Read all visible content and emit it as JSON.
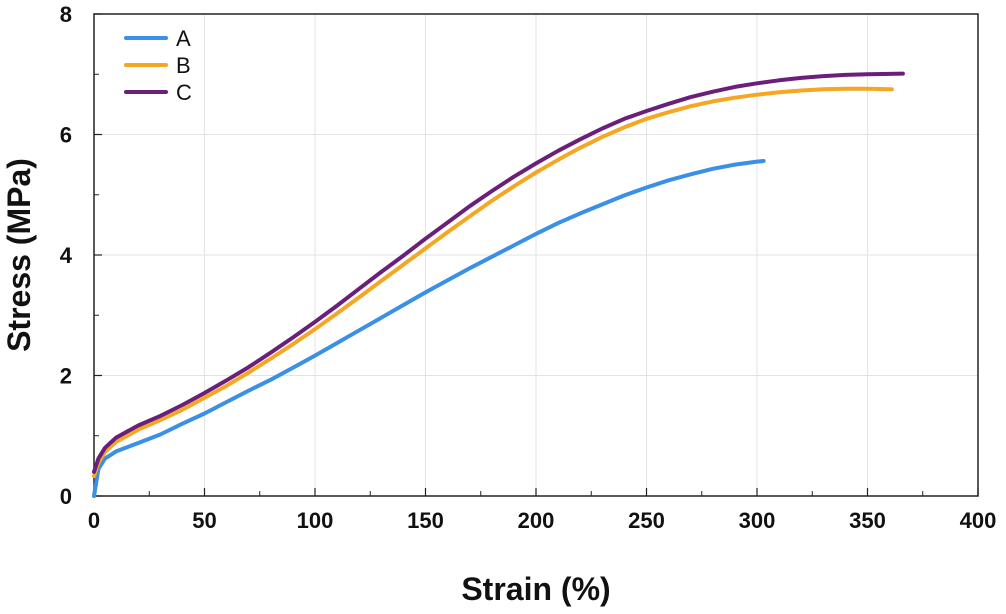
{
  "chart_data": {
    "type": "line",
    "xlabel": "Strain (%)",
    "ylabel": "Stress (MPa)",
    "xlim": [
      0,
      400
    ],
    "ylim": [
      0,
      8
    ],
    "xticks": [
      0,
      50,
      100,
      150,
      200,
      250,
      300,
      350,
      400
    ],
    "yticks": [
      0,
      2,
      4,
      6,
      8
    ],
    "grid": true,
    "legend_position": "top-left",
    "series": [
      {
        "name": "A",
        "color": "#3a8fe6",
        "points": [
          [
            0,
            0
          ],
          [
            2,
            0.45
          ],
          [
            5,
            0.62
          ],
          [
            10,
            0.74
          ],
          [
            20,
            0.88
          ],
          [
            30,
            1.02
          ],
          [
            40,
            1.2
          ],
          [
            50,
            1.37
          ],
          [
            60,
            1.56
          ],
          [
            70,
            1.75
          ],
          [
            80,
            1.93
          ],
          [
            90,
            2.13
          ],
          [
            100,
            2.33
          ],
          [
            110,
            2.54
          ],
          [
            120,
            2.75
          ],
          [
            130,
            2.96
          ],
          [
            140,
            3.17
          ],
          [
            150,
            3.38
          ],
          [
            160,
            3.58
          ],
          [
            170,
            3.78
          ],
          [
            180,
            3.97
          ],
          [
            190,
            4.16
          ],
          [
            200,
            4.35
          ],
          [
            210,
            4.53
          ],
          [
            220,
            4.69
          ],
          [
            230,
            4.84
          ],
          [
            240,
            4.99
          ],
          [
            250,
            5.12
          ],
          [
            260,
            5.24
          ],
          [
            270,
            5.34
          ],
          [
            280,
            5.43
          ],
          [
            290,
            5.5
          ],
          [
            300,
            5.55
          ],
          [
            303,
            5.56
          ]
        ]
      },
      {
        "name": "B",
        "color": "#f5a623",
        "points": [
          [
            0,
            0.33
          ],
          [
            2,
            0.55
          ],
          [
            5,
            0.73
          ],
          [
            10,
            0.9
          ],
          [
            20,
            1.1
          ],
          [
            30,
            1.26
          ],
          [
            40,
            1.43
          ],
          [
            50,
            1.63
          ],
          [
            60,
            1.83
          ],
          [
            70,
            2.05
          ],
          [
            80,
            2.28
          ],
          [
            90,
            2.52
          ],
          [
            100,
            2.77
          ],
          [
            110,
            3.03
          ],
          [
            120,
            3.3
          ],
          [
            130,
            3.57
          ],
          [
            140,
            3.84
          ],
          [
            150,
            4.11
          ],
          [
            160,
            4.38
          ],
          [
            170,
            4.64
          ],
          [
            180,
            4.9
          ],
          [
            190,
            5.14
          ],
          [
            200,
            5.37
          ],
          [
            210,
            5.58
          ],
          [
            220,
            5.78
          ],
          [
            230,
            5.96
          ],
          [
            240,
            6.12
          ],
          [
            250,
            6.26
          ],
          [
            260,
            6.37
          ],
          [
            270,
            6.47
          ],
          [
            280,
            6.55
          ],
          [
            290,
            6.61
          ],
          [
            300,
            6.66
          ],
          [
            310,
            6.7
          ],
          [
            320,
            6.73
          ],
          [
            330,
            6.75
          ],
          [
            340,
            6.76
          ],
          [
            350,
            6.76
          ],
          [
            361,
            6.75
          ]
        ]
      },
      {
        "name": "C",
        "color": "#6a1f7a",
        "points": [
          [
            0,
            0.4
          ],
          [
            2,
            0.62
          ],
          [
            5,
            0.8
          ],
          [
            10,
            0.97
          ],
          [
            20,
            1.17
          ],
          [
            30,
            1.33
          ],
          [
            40,
            1.51
          ],
          [
            50,
            1.71
          ],
          [
            60,
            1.92
          ],
          [
            70,
            2.14
          ],
          [
            80,
            2.38
          ],
          [
            90,
            2.63
          ],
          [
            100,
            2.89
          ],
          [
            110,
            3.16
          ],
          [
            120,
            3.44
          ],
          [
            130,
            3.72
          ],
          [
            140,
            3.99
          ],
          [
            150,
            4.27
          ],
          [
            160,
            4.54
          ],
          [
            170,
            4.81
          ],
          [
            180,
            5.06
          ],
          [
            190,
            5.3
          ],
          [
            200,
            5.52
          ],
          [
            210,
            5.73
          ],
          [
            220,
            5.92
          ],
          [
            230,
            6.1
          ],
          [
            240,
            6.26
          ],
          [
            250,
            6.39
          ],
          [
            260,
            6.51
          ],
          [
            270,
            6.62
          ],
          [
            280,
            6.71
          ],
          [
            290,
            6.79
          ],
          [
            300,
            6.85
          ],
          [
            310,
            6.9
          ],
          [
            320,
            6.94
          ],
          [
            330,
            6.97
          ],
          [
            340,
            6.99
          ],
          [
            350,
            7.0
          ],
          [
            366,
            7.01
          ]
        ]
      }
    ]
  }
}
